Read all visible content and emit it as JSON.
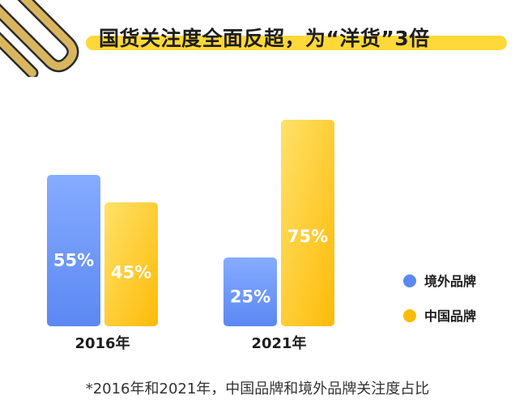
{
  "title": "国货关注度全面反超，为“洋货”3倍",
  "footnote": "*2016年和2021年，中国品牌和境外品牌关注度占比",
  "colors": {
    "blue_top": "#86acff",
    "blue_bottom": "#5b88f3",
    "yellow_top": "#ffe16a",
    "yellow_bottom": "#fdbb07",
    "highlight": "#ffd83a",
    "clip": "#c9a24a"
  },
  "chart_data": {
    "type": "bar",
    "categories": [
      "2016年",
      "2021年"
    ],
    "series": [
      {
        "name": "境外品牌",
        "values": [
          55,
          25
        ],
        "labels": [
          "55%",
          "25%"
        ]
      },
      {
        "name": "中国品牌",
        "values": [
          45,
          75
        ],
        "labels": [
          "45%",
          "75%"
        ]
      }
    ],
    "ylim": [
      0,
      75
    ],
    "legend": "right",
    "grid": false
  }
}
